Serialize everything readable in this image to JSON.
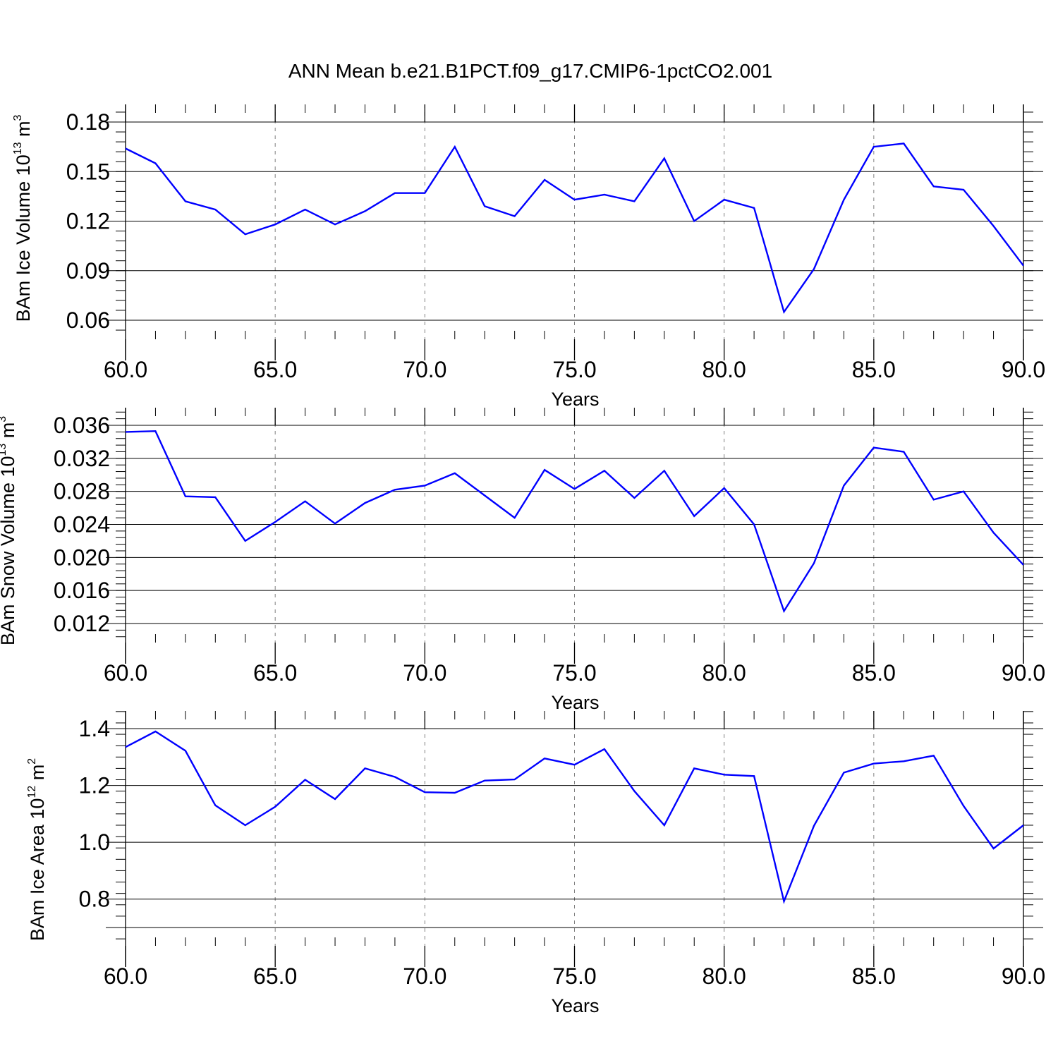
{
  "title": "ANN Mean b.e21.B1PCT.f09_g17.CMIP6-1pctCO2.001",
  "colors": {
    "line": "#0000ff",
    "axis": "#000000",
    "grid": "#808080"
  },
  "chart_data": [
    {
      "type": "line",
      "xlabel": "Years",
      "ylabel": {
        "text": "BAm Ice Volume 10",
        "exp": "13",
        "unit": " m",
        "unit_exp": "3"
      },
      "xlim": [
        60,
        90
      ],
      "ylim": [
        0.06,
        0.18
      ],
      "xticks": [
        60,
        65,
        70,
        75,
        80,
        85,
        90
      ],
      "xtick_labels": [
        "60.0",
        "65.0",
        "70.0",
        "75.0",
        "80.0",
        "85.0",
        "90.0"
      ],
      "yticks": [
        0.06,
        0.09,
        0.12,
        0.15,
        0.18
      ],
      "ytick_labels": [
        "0.06",
        "0.09",
        "0.12",
        "0.15",
        "0.18"
      ],
      "grid": "vertical dashed",
      "x": [
        60,
        61,
        62,
        63,
        64,
        65,
        66,
        67,
        68,
        69,
        70,
        71,
        72,
        73,
        74,
        75,
        76,
        77,
        78,
        79,
        80,
        81,
        82,
        83,
        84,
        85,
        86,
        87,
        88,
        89,
        90
      ],
      "values": [
        0.164,
        0.155,
        0.132,
        0.127,
        0.112,
        0.118,
        0.127,
        0.118,
        0.126,
        0.137,
        0.137,
        0.165,
        0.129,
        0.123,
        0.145,
        0.133,
        0.136,
        0.132,
        0.158,
        0.12,
        0.133,
        0.128,
        0.065,
        0.091,
        0.133,
        0.165,
        0.167,
        0.141,
        0.139,
        0.117,
        0.093
      ]
    },
    {
      "type": "line",
      "xlabel": "Years",
      "ylabel": {
        "text": "BAm Snow Volume 10",
        "exp": "13",
        "unit": " m",
        "unit_exp": "3"
      },
      "xlim": [
        60,
        90
      ],
      "ylim": [
        0.012,
        0.036
      ],
      "xticks": [
        60,
        65,
        70,
        75,
        80,
        85,
        90
      ],
      "xtick_labels": [
        "60.0",
        "65.0",
        "70.0",
        "75.0",
        "80.0",
        "85.0",
        "90.0"
      ],
      "yticks": [
        0.012,
        0.016,
        0.02,
        0.024,
        0.028,
        0.032,
        0.036
      ],
      "ytick_labels": [
        "0.012",
        "0.016",
        "0.020",
        "0.024",
        "0.028",
        "0.032",
        "0.036"
      ],
      "grid": "vertical dashed",
      "x": [
        60,
        61,
        62,
        63,
        64,
        65,
        66,
        67,
        68,
        69,
        70,
        71,
        72,
        73,
        74,
        75,
        76,
        77,
        78,
        79,
        80,
        81,
        82,
        83,
        84,
        85,
        86,
        87,
        88,
        89,
        90
      ],
      "values": [
        0.0352,
        0.0353,
        0.0274,
        0.0273,
        0.022,
        0.0243,
        0.0268,
        0.0241,
        0.0266,
        0.0282,
        0.0287,
        0.0302,
        0.0275,
        0.0248,
        0.0306,
        0.0283,
        0.0305,
        0.0272,
        0.0305,
        0.025,
        0.0284,
        0.024,
        0.0135,
        0.0193,
        0.0287,
        0.0333,
        0.0328,
        0.027,
        0.028,
        0.023,
        0.0191
      ]
    },
    {
      "type": "line",
      "xlabel": "Years",
      "ylabel": {
        "text": "BAm Ice Area 10",
        "exp": "12",
        "unit": " m",
        "unit_exp": "2"
      },
      "xlim": [
        60,
        90
      ],
      "ylim": [
        0.7,
        1.4
      ],
      "xticks": [
        60,
        65,
        70,
        75,
        80,
        85,
        90
      ],
      "xtick_labels": [
        "60.0",
        "65.0",
        "70.0",
        "75.0",
        "80.0",
        "85.0",
        "90.0"
      ],
      "yticks": [
        0.8,
        1.0,
        1.2,
        1.4
      ],
      "ytick_labels": [
        "0.8",
        "1.0",
        "1.2",
        "1.4"
      ],
      "grid": "vertical dashed",
      "x": [
        60,
        61,
        62,
        63,
        64,
        65,
        66,
        67,
        68,
        69,
        70,
        71,
        72,
        73,
        74,
        75,
        76,
        77,
        78,
        79,
        80,
        81,
        82,
        83,
        84,
        85,
        86,
        87,
        88,
        89,
        90
      ],
      "values": [
        1.335,
        1.39,
        1.322,
        1.13,
        1.06,
        1.125,
        1.22,
        1.152,
        1.26,
        1.23,
        1.176,
        1.174,
        1.217,
        1.221,
        1.295,
        1.273,
        1.328,
        1.18,
        1.06,
        1.26,
        1.238,
        1.233,
        0.792,
        1.058,
        1.245,
        1.277,
        1.285,
        1.305,
        1.128,
        0.978,
        1.06
      ]
    }
  ]
}
